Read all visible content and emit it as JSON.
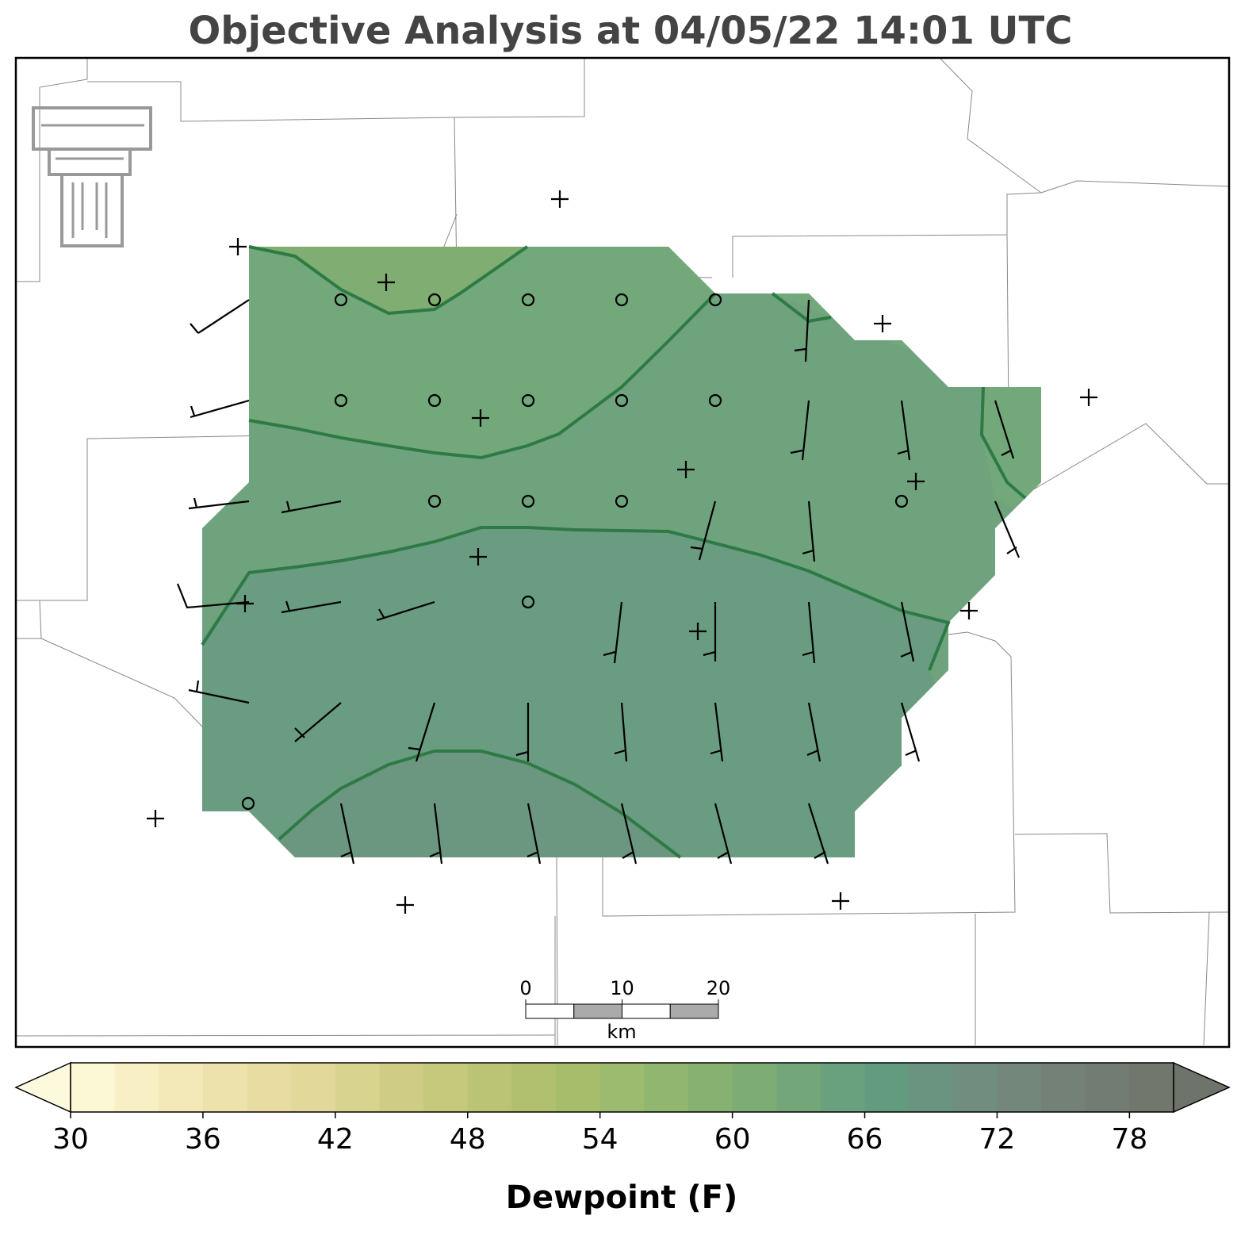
{
  "title": "Objective Analysis at 04/05/22 14:01 UTC",
  "scale_bar": {
    "ticks": [
      0,
      10,
      20
    ],
    "unit": "km"
  },
  "colorbar": {
    "label": "Dewpoint (F)",
    "ticks": [
      30,
      36,
      42,
      48,
      54,
      60,
      66,
      72,
      78
    ],
    "levels": [
      30,
      32,
      34,
      36,
      38,
      40,
      42,
      44,
      46,
      48,
      50,
      52,
      54,
      56,
      58,
      60,
      62,
      64,
      66,
      68,
      70,
      72,
      74,
      76,
      78,
      80
    ],
    "colors": [
      "#fcf7d4",
      "#f8f0c4",
      "#f3e8b8",
      "#ede2ac",
      "#e8dca3",
      "#e2d89a",
      "#d8d38f",
      "#cfcd85",
      "#c6c87c",
      "#bac474",
      "#b0c06e",
      "#a6be6c",
      "#9cbb6e",
      "#91b66f",
      "#86b171",
      "#7dac74",
      "#73a779",
      "#69a17e",
      "#639b7f",
      "#6a9380",
      "#718d7f",
      "#74877b",
      "#748176",
      "#737c72",
      "#71776d"
    ],
    "under_color": "#fdf9dc",
    "over_color": "#6f746a"
  }
}
